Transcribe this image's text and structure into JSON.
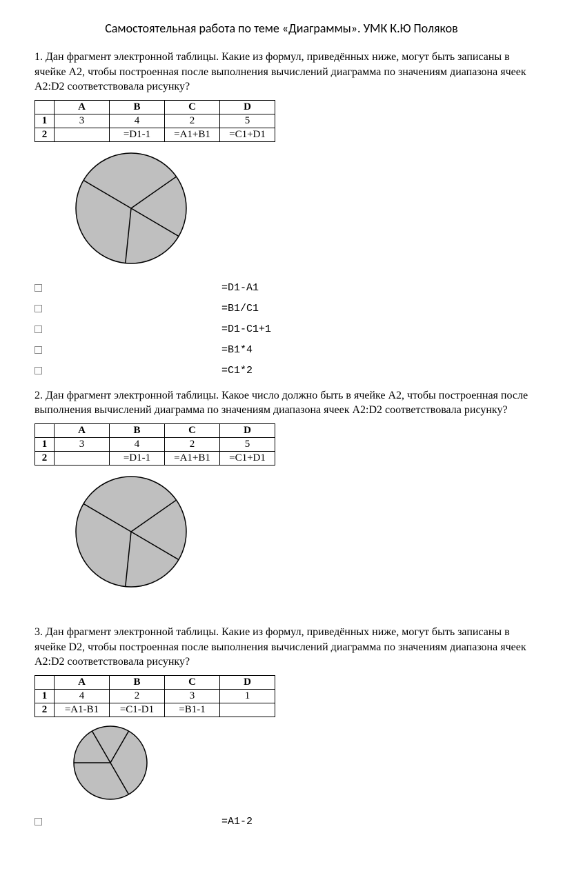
{
  "title": "Самостоятельная  работа по теме «Диаграммы». УМК К.Ю Поляков",
  "q1": {
    "text": "1. Дан фрагмент электронной таблицы. Какие из формул, приведённых ниже, могут быть записаны в ячейке A2, чтобы построенная после выполнения вычислений диаграмма по значениям диапазона ячеек A2:D2 соответствовала рисунку?",
    "table": {
      "cols": [
        "A",
        "B",
        "C",
        "D"
      ],
      "rows": [
        {
          "head": "1",
          "cells": [
            "3",
            "4",
            "2",
            "5"
          ]
        },
        {
          "head": "2",
          "cells": [
            "",
            "=D1-1",
            "=A1+B1",
            "=C1+D1"
          ]
        }
      ]
    },
    "pie": {
      "radius": 80,
      "fill": "#bfbfbf",
      "stroke": "#000000",
      "slices": [
        4,
        4,
        7,
        7
      ],
      "start_deg": -35
    },
    "options": [
      "=D1-A1",
      "=B1/C1",
      "=D1-C1+1",
      "=B1*4",
      "=C1*2"
    ]
  },
  "q2": {
    "text": "2. Дан фрагмент электронной таблицы. Какое число должно быть в ячейке A2, чтобы построенная после выполнения вычислений диаграмма по значениям диапазона ячеек A2:D2 соответствовала рисунку?",
    "table": {
      "cols": [
        "A",
        "B",
        "C",
        "D"
      ],
      "rows": [
        {
          "head": "1",
          "cells": [
            "3",
            "4",
            "2",
            "5"
          ]
        },
        {
          "head": "2",
          "cells": [
            "",
            "=D1-1",
            "=A1+B1",
            "=C1+D1"
          ]
        }
      ]
    },
    "pie": {
      "radius": 80,
      "fill": "#bfbfbf",
      "stroke": "#000000",
      "slices": [
        4,
        4,
        7,
        7
      ],
      "start_deg": -35
    }
  },
  "q3": {
    "text": "3. Дан фрагмент электронной таблицы. Какие из формул, приведённых ниже, могут быть записаны в ячейке D2, чтобы построенная после выполнения вычислений диаграмма по значениям диапазона ячеек A2:D2 соответствовала рисунку?",
    "table": {
      "cols": [
        "A",
        "B",
        "C",
        "D"
      ],
      "rows": [
        {
          "head": "1",
          "cells": [
            "4",
            "2",
            "3",
            "1"
          ]
        },
        {
          "head": "2",
          "cells": [
            "=A1-B1",
            "=C1-D1",
            "=B1-1",
            ""
          ]
        }
      ]
    },
    "pie": {
      "radius": 53,
      "fill": "#bfbfbf",
      "stroke": "#000000",
      "slices": [
        2,
        2,
        1,
        1
      ],
      "start_deg": -60
    },
    "options": [
      "=A1-2"
    ]
  }
}
